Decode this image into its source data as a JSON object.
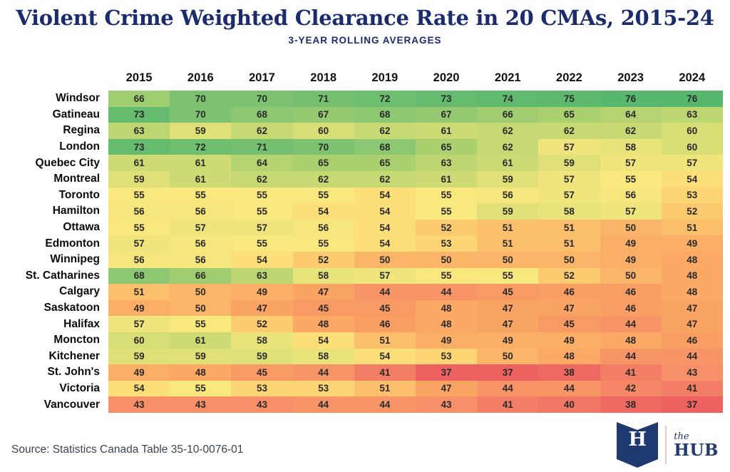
{
  "title": "Violent Crime Weighted Clearance Rate in 20 CMAs, 2015-24",
  "subtitle": "3-YEAR ROLLING AVERAGES",
  "source": "Source: Statistics Canada Table 35-10-0076-01",
  "logo": {
    "letter": "H",
    "the": "the",
    "hub": "HUB"
  },
  "colors": {
    "title_navy": "#1b2c6e",
    "logo_navy": "#1f3a70",
    "logo_divider_pink": "#f3c3bf",
    "source_text": "#3c4353"
  },
  "chart_data": {
    "type": "heatmap",
    "title": "Violent Crime Weighted Clearance Rate in 20 CMAs, 2015-24",
    "subtitle": "3-YEAR ROLLING AVERAGES",
    "columns": [
      "2015",
      "2016",
      "2017",
      "2018",
      "2019",
      "2020",
      "2021",
      "2022",
      "2023",
      "2024"
    ],
    "rows": [
      {
        "label": "Windsor",
        "values": [
          66,
          70,
          70,
          71,
          72,
          73,
          74,
          75,
          76,
          76
        ]
      },
      {
        "label": "Gatineau",
        "values": [
          73,
          70,
          68,
          67,
          68,
          67,
          66,
          65,
          64,
          63
        ]
      },
      {
        "label": "Regina",
        "values": [
          63,
          59,
          62,
          60,
          62,
          61,
          62,
          62,
          62,
          60
        ]
      },
      {
        "label": "London",
        "values": [
          73,
          72,
          71,
          70,
          68,
          65,
          62,
          57,
          58,
          60
        ]
      },
      {
        "label": "Quebec City",
        "values": [
          61,
          61,
          64,
          65,
          65,
          63,
          61,
          59,
          57,
          57
        ]
      },
      {
        "label": "Montreal",
        "values": [
          59,
          61,
          62,
          62,
          62,
          61,
          59,
          57,
          55,
          54
        ]
      },
      {
        "label": "Toronto",
        "values": [
          55,
          55,
          55,
          55,
          54,
          55,
          56,
          57,
          56,
          53
        ]
      },
      {
        "label": "Hamilton",
        "values": [
          56,
          56,
          55,
          54,
          54,
          55,
          59,
          58,
          57,
          52
        ]
      },
      {
        "label": "Ottawa",
        "values": [
          55,
          57,
          57,
          56,
          54,
          52,
          51,
          51,
          50,
          51
        ]
      },
      {
        "label": "Edmonton",
        "values": [
          57,
          56,
          55,
          55,
          54,
          53,
          51,
          51,
          49,
          49
        ]
      },
      {
        "label": "Winnipeg",
        "values": [
          56,
          56,
          54,
          52,
          50,
          50,
          50,
          50,
          49,
          48
        ]
      },
      {
        "label": "St. Catharines",
        "values": [
          68,
          66,
          63,
          58,
          57,
          55,
          55,
          52,
          50,
          48
        ]
      },
      {
        "label": "Calgary",
        "values": [
          51,
          50,
          49,
          47,
          44,
          44,
          45,
          46,
          46,
          48
        ]
      },
      {
        "label": "Saskatoon",
        "values": [
          49,
          50,
          47,
          45,
          45,
          48,
          47,
          47,
          46,
          47
        ]
      },
      {
        "label": "Halifax",
        "values": [
          57,
          55,
          52,
          48,
          46,
          48,
          47,
          45,
          44,
          47
        ]
      },
      {
        "label": "Moncton",
        "values": [
          60,
          61,
          58,
          54,
          51,
          49,
          49,
          49,
          48,
          46
        ]
      },
      {
        "label": "Kitchener",
        "values": [
          59,
          59,
          59,
          58,
          54,
          53,
          50,
          48,
          44,
          44
        ]
      },
      {
        "label": "St. John's",
        "values": [
          49,
          48,
          45,
          44,
          41,
          37,
          37,
          38,
          41,
          43
        ]
      },
      {
        "label": "Victoria",
        "values": [
          54,
          55,
          53,
          53,
          51,
          47,
          44,
          44,
          42,
          41
        ]
      },
      {
        "label": "Vancouver",
        "values": [
          43,
          43,
          43,
          44,
          44,
          43,
          41,
          40,
          38,
          37
        ]
      }
    ],
    "value_domain": [
      37,
      76
    ],
    "colormap": "red-yellow-green",
    "color_stops": [
      [
        37,
        "#ed6260"
      ],
      [
        40,
        "#f07763"
      ],
      [
        43,
        "#f78f68"
      ],
      [
        45,
        "#f89a64"
      ],
      [
        47,
        "#faa463"
      ],
      [
        49,
        "#fbae66"
      ],
      [
        50,
        "#fbb568"
      ],
      [
        52,
        "#fdcb6f"
      ],
      [
        54,
        "#fcdf78"
      ],
      [
        55,
        "#f9e87e"
      ],
      [
        57,
        "#f0e57c"
      ],
      [
        59,
        "#e0e078"
      ],
      [
        61,
        "#cedb74"
      ],
      [
        63,
        "#bed672"
      ],
      [
        65,
        "#abd06f"
      ],
      [
        67,
        "#95c971"
      ],
      [
        69,
        "#83c472"
      ],
      [
        71,
        "#74c070"
      ],
      [
        73,
        "#66bc6e"
      ],
      [
        76,
        "#57b86d"
      ]
    ],
    "grid": false,
    "legend": "none"
  }
}
